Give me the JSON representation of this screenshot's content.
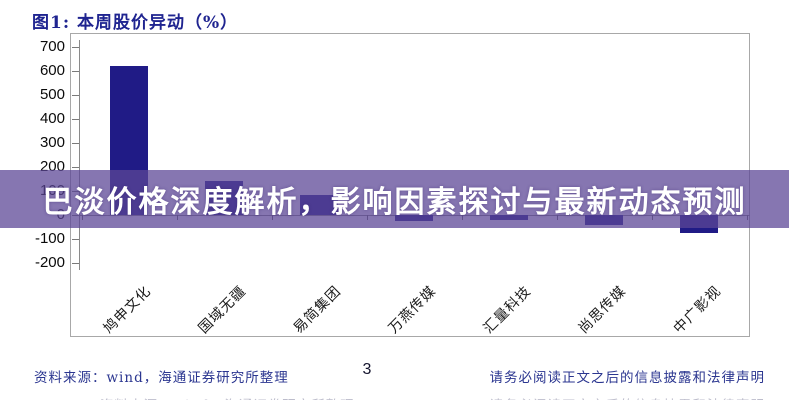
{
  "title": "图1: 本周股价异动（%）",
  "banner": {
    "text": "巴淡价格深度解析，影响因素探讨与最新动态预测"
  },
  "chart_data": {
    "type": "bar",
    "title": "本周股价异动（%）",
    "categories": [
      "鸠申文化",
      "国域无疆",
      "易简集团",
      "万燕传媒",
      "汇量科技",
      "尚思传媒",
      "中广影视"
    ],
    "values": [
      620,
      140,
      85,
      -25,
      -20,
      -40,
      -75
    ],
    "xlabel": "",
    "ylabel": "",
    "ylim": [
      -200,
      700
    ],
    "ytick_step": 100,
    "grid": false,
    "legend": "none",
    "bar_color": "#201b86"
  },
  "colors": {
    "bar": "#201b86",
    "banner_overlay": "rgba(92,70,150,0.74)",
    "title_navy": "#1f2490",
    "footer_navy": "#2b3690"
  },
  "footer": {
    "source": "资料来源：wind，海通证券研究所整理",
    "page": "3",
    "disclaimer": "请务必阅读正文之后的信息披露和法律声明"
  }
}
